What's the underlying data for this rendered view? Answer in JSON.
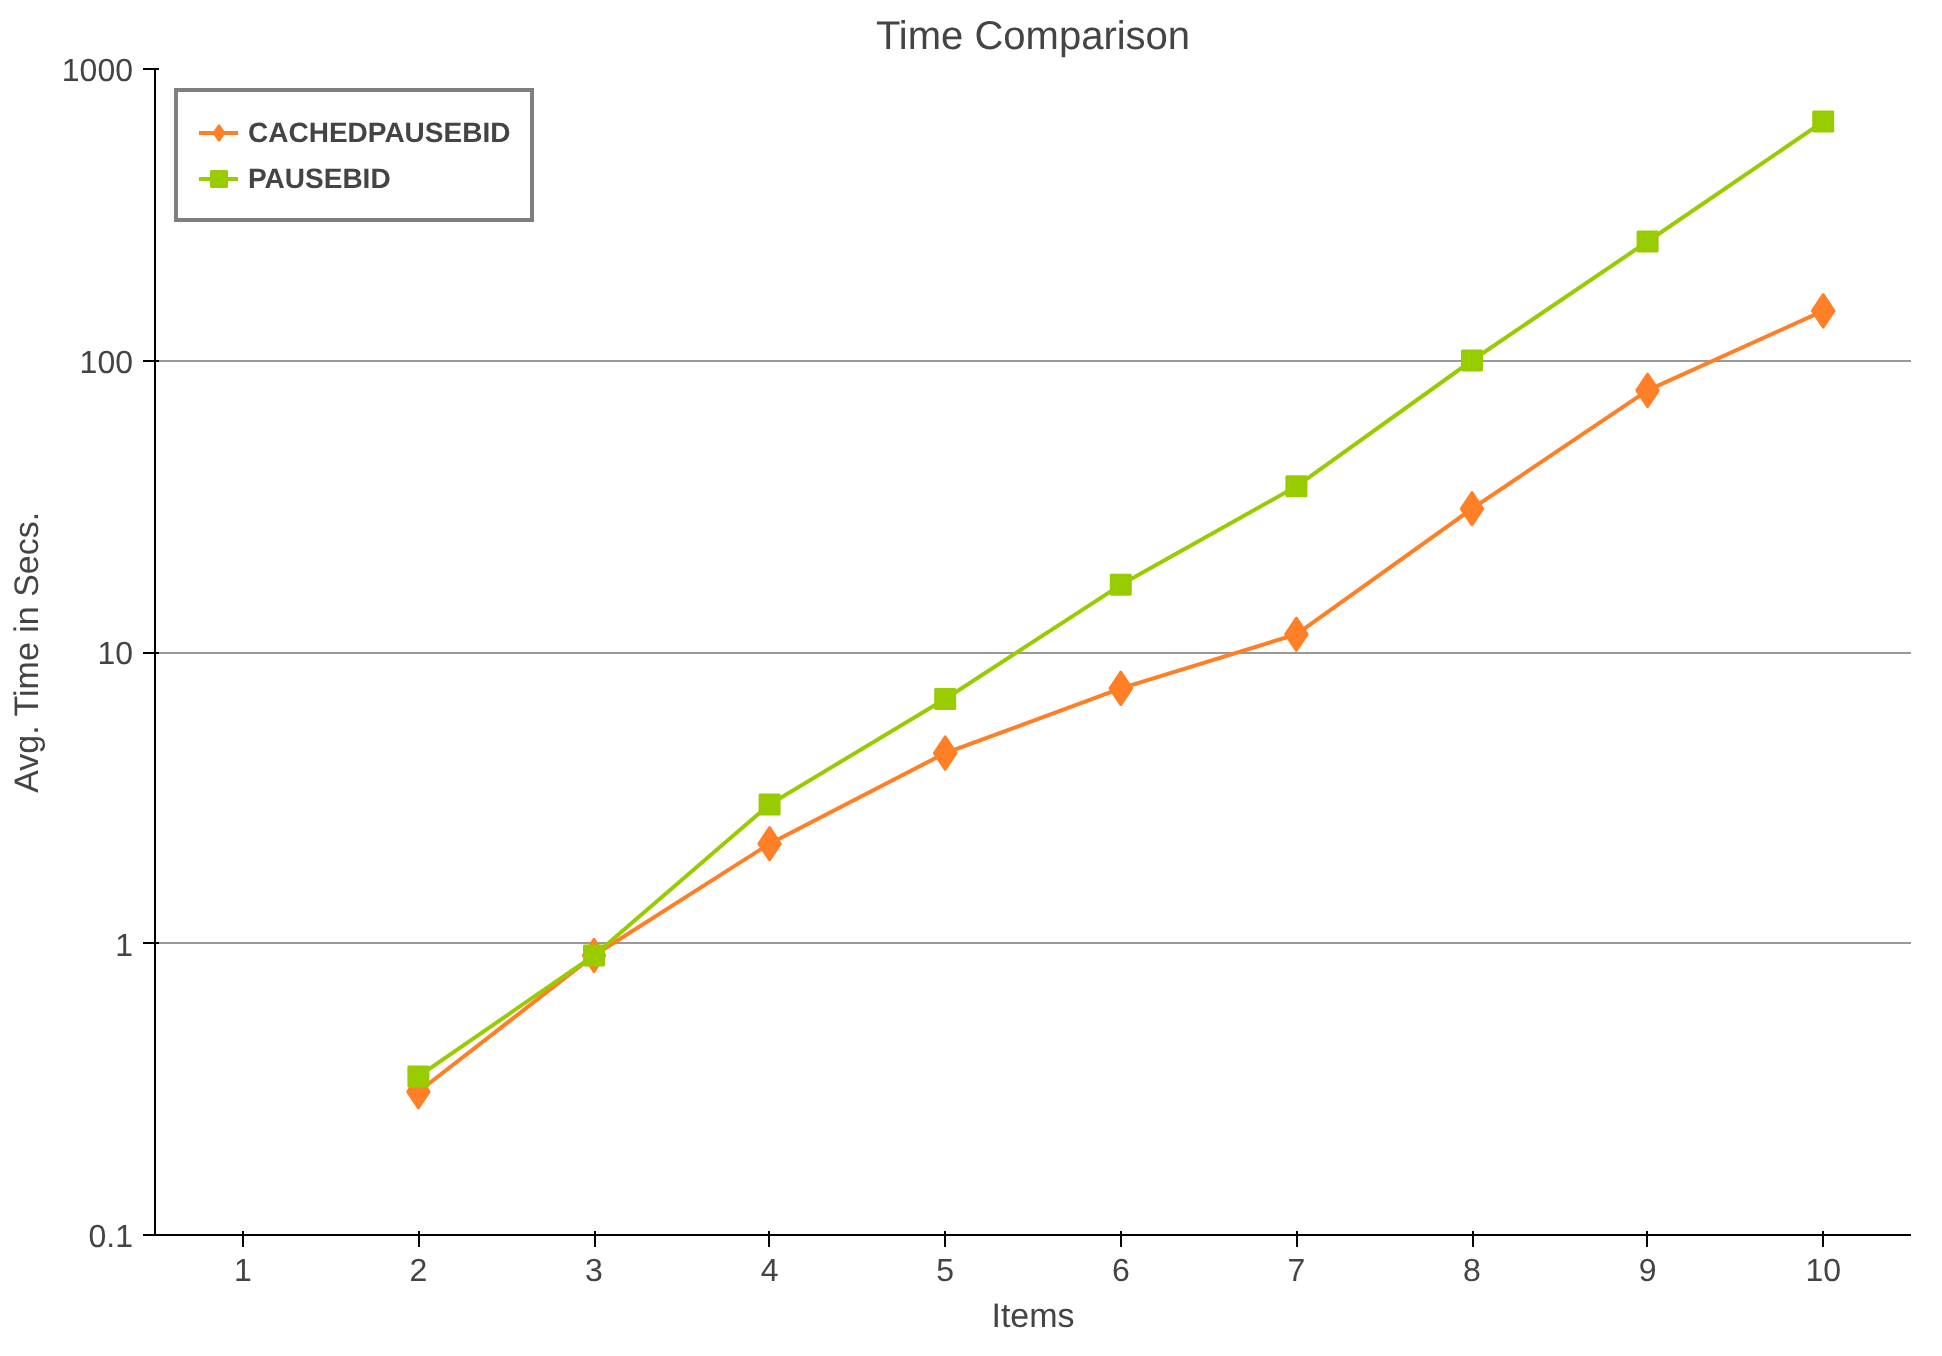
{
  "chart_data": {
    "type": "line",
    "title": "Time Comparison",
    "xlabel": "Items",
    "ylabel": "Avg. Time in Secs.",
    "categories": [
      "1",
      "2",
      "3",
      "4",
      "5",
      "6",
      "7",
      "8",
      "9",
      "10"
    ],
    "series": [
      {
        "name": "CACHEDPAUSEBID",
        "color": "#ff7f27",
        "marker": "diamond",
        "values": [
          null,
          0.31,
          0.91,
          2.2,
          4.5,
          7.5,
          11.5,
          31,
          79,
          148
        ]
      },
      {
        "name": "PAUSEBID",
        "color": "#99cc00",
        "marker": "square",
        "values": [
          null,
          0.35,
          0.91,
          3.0,
          6.9,
          17,
          37,
          100,
          256,
          660
        ]
      }
    ],
    "log": true,
    "ylim": [
      0.1,
      1000
    ],
    "yticks": [
      0.1,
      1,
      10,
      100,
      1000
    ],
    "grid": "y",
    "legend": "top left",
    "line_style": "solid"
  }
}
